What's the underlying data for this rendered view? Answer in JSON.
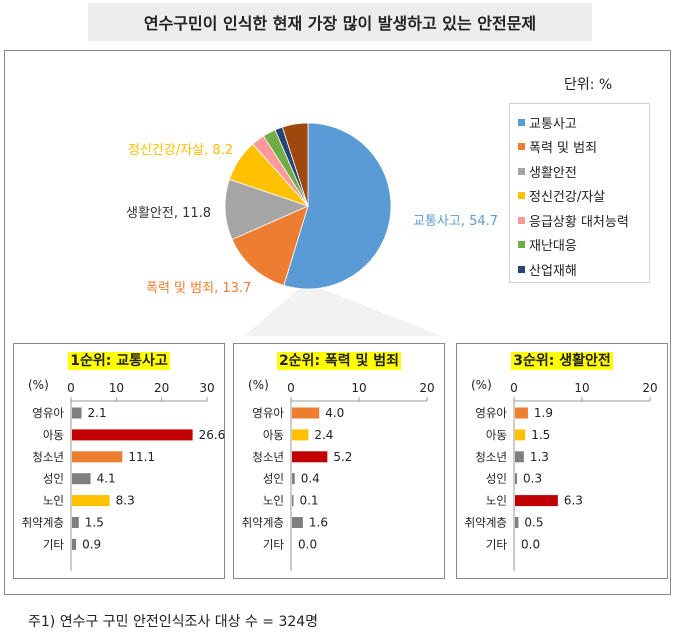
{
  "title": "연수구민이 인식한 현재 가장 많이 발생하고 있는 안전문제",
  "unit_label": "단위: %",
  "note": "주1) 연수구 구민 안전인식조사 대상 수 = 324명",
  "legend": [
    {
      "label": "교통사고",
      "color": "#5b9bd5"
    },
    {
      "label": "폭력 및 범죄",
      "color": "#ed7d31"
    },
    {
      "label": "생활안전",
      "color": "#a5a5a5"
    },
    {
      "label": "정신건강/자살",
      "color": "#ffc000"
    },
    {
      "label": "응급상황 대처능력",
      "color": "#ff9999"
    },
    {
      "label": "재난대응",
      "color": "#70ad47"
    },
    {
      "label": "산업재해",
      "color": "#264478"
    }
  ],
  "pie_labels": {
    "traffic": "교통사고, 54.7",
    "violence": "폭력 및 범죄, 13.7",
    "life": "생활안전, 11.8",
    "mental": "정신건강/자살, 8.2"
  },
  "pie_label_colors": {
    "traffic": "#5b9bd5",
    "violence": "#ed7d31",
    "life": "#333333",
    "mental": "#ffc000"
  },
  "chart_data": [
    {
      "type": "pie",
      "title": "연수구민이 인식한 현재 가장 많이 발생하고 있는 안전문제",
      "unit": "%",
      "slices": [
        {
          "label": "교통사고",
          "value": 54.7,
          "color": "#5b9bd5"
        },
        {
          "label": "폭력 및 범죄",
          "value": 13.7,
          "color": "#ed7d31"
        },
        {
          "label": "생활안전",
          "value": 11.8,
          "color": "#a5a5a5"
        },
        {
          "label": "정신건강/자살",
          "value": 8.2,
          "color": "#ffc000"
        },
        {
          "label": "응급상황 대처능력",
          "value": 2.6,
          "color": "#ff9999"
        },
        {
          "label": "재난대응",
          "value": 2.5,
          "color": "#70ad47"
        },
        {
          "label": "산업재해",
          "value": 1.5,
          "color": "#264478"
        },
        {
          "label": "",
          "value": 5.0,
          "color": "#9e480e"
        }
      ]
    },
    {
      "type": "bar",
      "title": "1순위: 교통사고",
      "ylabel": "(%)",
      "xlim": [
        0,
        30
      ],
      "ticks": [
        0,
        10,
        20,
        30
      ],
      "categories": [
        "영유아",
        "아동",
        "청소년",
        "성인",
        "노인",
        "취약계층",
        "기타"
      ],
      "values": [
        2.1,
        26.6,
        11.1,
        4.1,
        8.3,
        1.5,
        0.9
      ],
      "colors": [
        "#7f7f7f",
        "#c00000",
        "#ed7d31",
        "#7f7f7f",
        "#ffc000",
        "#7f7f7f",
        "#7f7f7f"
      ]
    },
    {
      "type": "bar",
      "title": "2순위: 폭력 및 범죄",
      "ylabel": "(%)",
      "xlim": [
        0,
        20
      ],
      "ticks": [
        0,
        10,
        20
      ],
      "categories": [
        "영유아",
        "아동",
        "청소년",
        "성인",
        "노인",
        "취약계층",
        "기타"
      ],
      "values": [
        4.0,
        2.4,
        5.2,
        0.4,
        0.1,
        1.6,
        0.0
      ],
      "value_labels": [
        "4.0",
        "2.4",
        "5.2",
        "0.4",
        "0.1",
        "1.6",
        "0.0"
      ],
      "colors": [
        "#ed7d31",
        "#ffc000",
        "#c00000",
        "#7f7f7f",
        "#7f7f7f",
        "#7f7f7f",
        "#7f7f7f"
      ]
    },
    {
      "type": "bar",
      "title": "3순위: 생활안전",
      "ylabel": "(%)",
      "xlim": [
        0,
        20
      ],
      "ticks": [
        0,
        10,
        20
      ],
      "categories": [
        "영유아",
        "아동",
        "청소년",
        "성인",
        "노인",
        "취약계층",
        "기타"
      ],
      "values": [
        1.9,
        1.5,
        1.3,
        0.3,
        6.3,
        0.5,
        0.0
      ],
      "value_labels": [
        "1.9",
        "1.5",
        "1.3",
        "0.3",
        "6.3",
        "0.5",
        "0.0"
      ],
      "colors": [
        "#ed7d31",
        "#ffc000",
        "#7f7f7f",
        "#7f7f7f",
        "#c00000",
        "#7f7f7f",
        "#7f7f7f"
      ]
    }
  ]
}
